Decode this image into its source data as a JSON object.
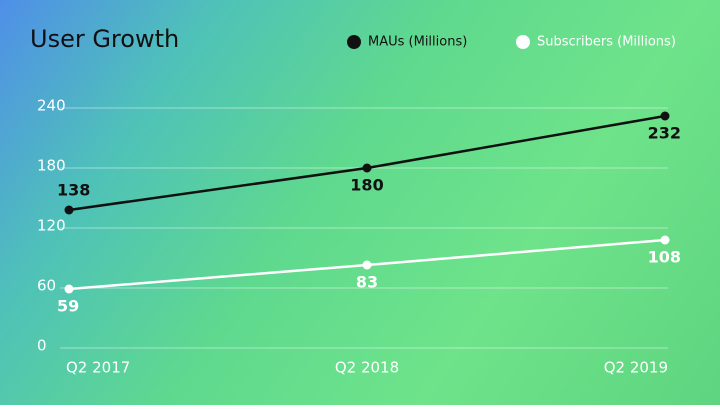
{
  "chart_data": {
    "type": "line",
    "title": "User Growth",
    "categories": [
      "Q2 2017",
      "Q2 2018",
      "Q2 2019"
    ],
    "series": [
      {
        "name": "MAUs (Millions)",
        "color": "#111111",
        "values": [
          138,
          180,
          232
        ]
      },
      {
        "name": "Subscribers (Millions)",
        "color": "#ffffff",
        "values": [
          59,
          83,
          108
        ]
      }
    ],
    "ylim": [
      0,
      240
    ],
    "yticks": [
      0,
      60,
      120,
      180,
      240
    ],
    "grid": true,
    "legend": "top-right",
    "data_labels": true
  }
}
